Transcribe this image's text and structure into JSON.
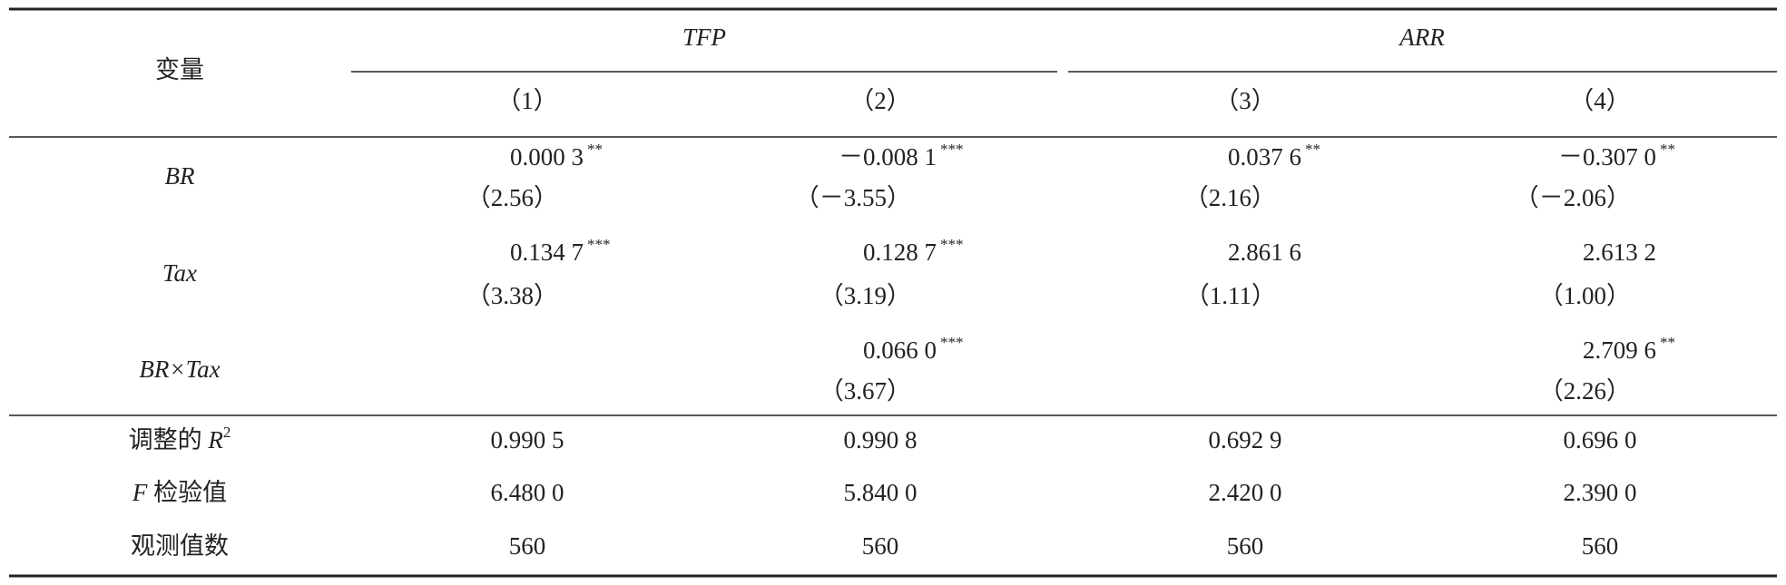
{
  "header": {
    "var_label": "变量",
    "groups": [
      "TFP",
      "ARR"
    ],
    "columns": [
      "（1）",
      "（2）",
      "（3）",
      "（4）"
    ]
  },
  "rows": [
    {
      "label": "BR",
      "cells": [
        {
          "coef": "0.000 3",
          "stars": "**",
          "t": "（2.56）"
        },
        {
          "coef": "－0.008 1",
          "stars": "***",
          "t": "（－3.55）"
        },
        {
          "coef": "0.037 6",
          "stars": "**",
          "t": "（2.16）"
        },
        {
          "coef": "－0.307 0",
          "stars": "**",
          "t": "（－2.06）"
        }
      ]
    },
    {
      "label": "Tax",
      "cells": [
        {
          "coef": "0.134 7",
          "stars": "***",
          "t": "（3.38）"
        },
        {
          "coef": "0.128 7",
          "stars": "***",
          "t": "（3.19）"
        },
        {
          "coef": "2.861 6",
          "t": "（1.11）"
        },
        {
          "coef": "2.613 2",
          "t": "（1.00）"
        }
      ]
    },
    {
      "label": "BR×Tax",
      "cells": [
        null,
        {
          "coef": "0.066 0",
          "stars": "***",
          "t": "（3.67）"
        },
        null,
        {
          "coef": "2.709 6",
          "stars": "**",
          "t": "（2.26）"
        }
      ]
    }
  ],
  "stats": [
    {
      "label": [
        {
          "text": "调整的 "
        },
        {
          "text": "R",
          "italic": true
        },
        {
          "text": "2",
          "sup": true
        }
      ],
      "values": [
        "0.990 5",
        "0.990 8",
        "0.692 9",
        "0.696 0"
      ]
    },
    {
      "label": [
        {
          "text": "F",
          "italic": true
        },
        {
          "text": " 检验值"
        }
      ],
      "values": [
        "6.480 0",
        "5.840 0",
        "2.420 0",
        "2.390 0"
      ]
    },
    {
      "label": [
        {
          "text": "观测值数"
        }
      ],
      "values": [
        "560",
        "560",
        "560",
        "560"
      ]
    }
  ]
}
